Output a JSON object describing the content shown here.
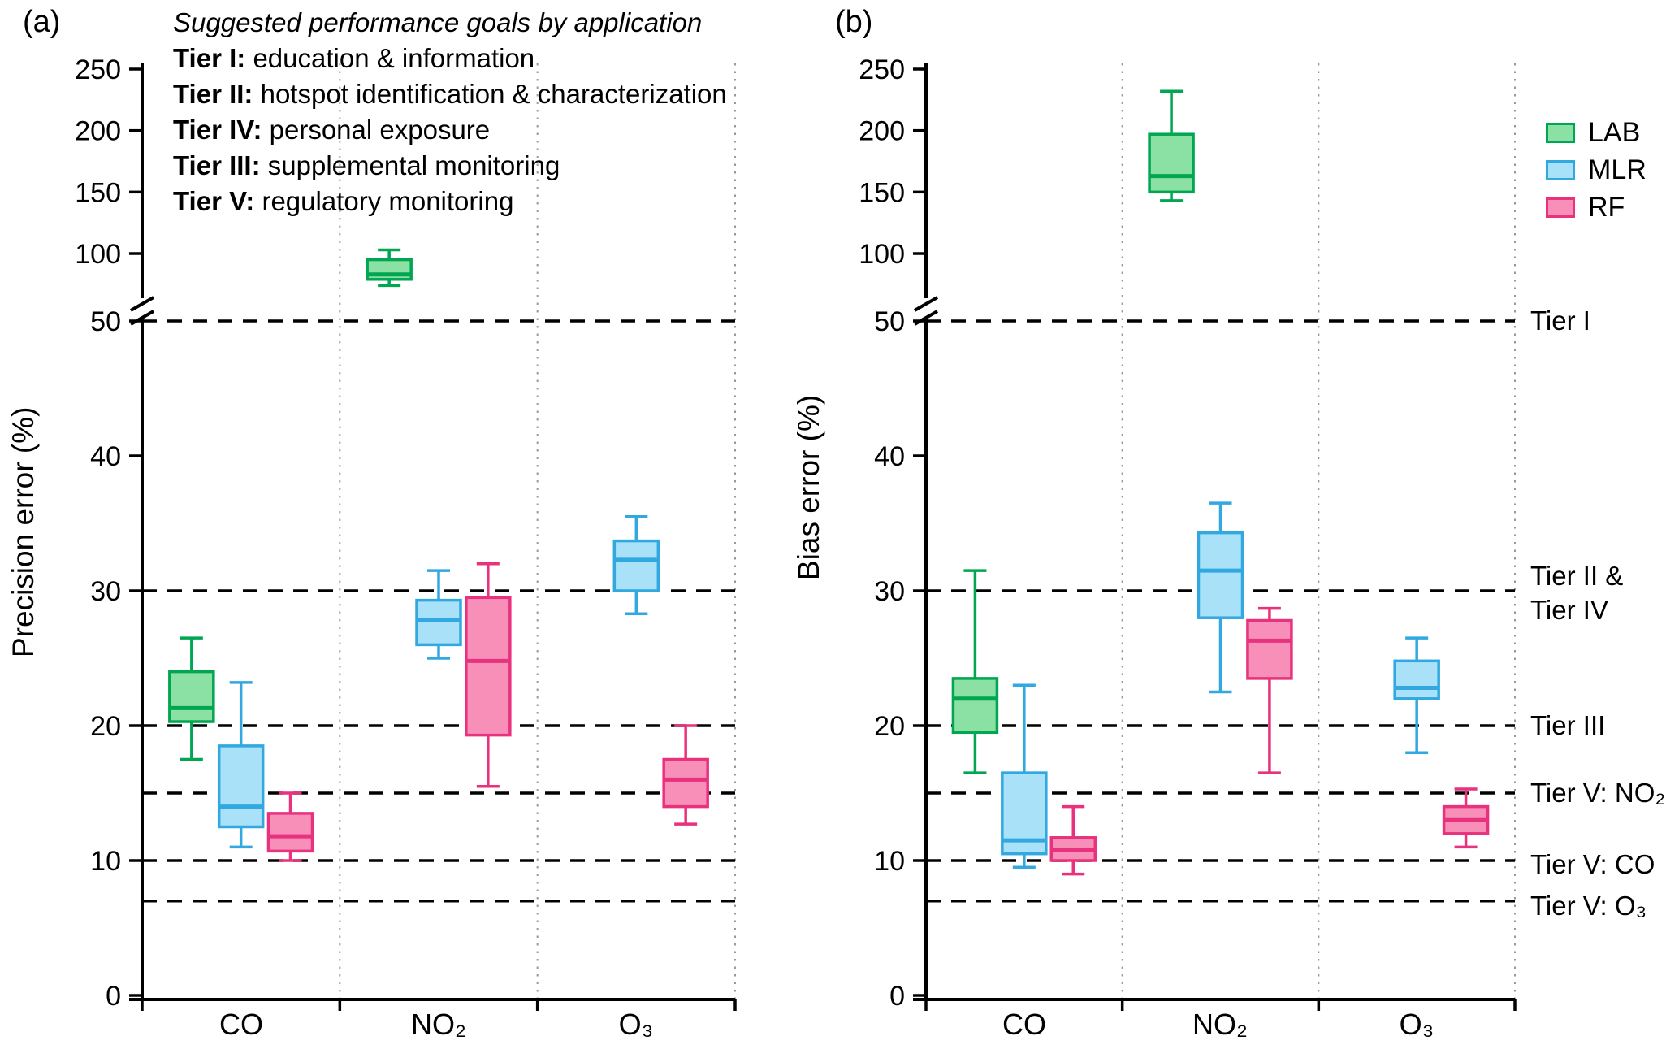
{
  "annotation": {
    "title": "Suggested performance goals by application",
    "items": [
      {
        "bold": "Tier I:",
        "text": "education & information"
      },
      {
        "bold": "Tier II:",
        "text": "hotspot identification & characterization"
      },
      {
        "bold": "Tier IV:",
        "text": "personal exposure"
      },
      {
        "bold": "Tier III:",
        "text": "supplemental monitoring"
      },
      {
        "bold": "Tier V:",
        "text": "regulatory monitoring"
      }
    ]
  },
  "chart_data": {
    "type": "box",
    "categories": [
      "CO",
      "NO₂",
      "O₃"
    ],
    "series": [
      {
        "name": "LAB",
        "fill": "#8BE0A4",
        "stroke": "#00A651"
      },
      {
        "name": "MLR",
        "fill": "#A9E1F8",
        "stroke": "#31A8E0"
      },
      {
        "name": "RF",
        "fill": "#F78FB9",
        "stroke": "#E8327D"
      }
    ],
    "y_axis": {
      "broken": true,
      "lower_range": [
        0,
        50
      ],
      "lower_ticks": [
        0,
        10,
        20,
        30,
        40,
        50
      ],
      "upper_range": [
        100,
        250
      ],
      "upper_ticks": [
        100,
        150,
        200,
        250
      ],
      "break_between": [
        50,
        100
      ]
    },
    "tier_lines": [
      {
        "value": 50,
        "label": "Tier I",
        "lines": [
          "Tier I"
        ]
      },
      {
        "value": 30,
        "label": "Tier II & Tier IV",
        "lines": [
          "Tier II &",
          "Tier IV"
        ]
      },
      {
        "value": 20,
        "label": "Tier III",
        "lines": [
          "Tier III"
        ]
      },
      {
        "value": 15,
        "label": "Tier V: NO₂",
        "lines": [
          "Tier V: NO₂"
        ]
      },
      {
        "value": 10,
        "label": "Tier V: CO",
        "lines": [
          "Tier V: CO"
        ]
      },
      {
        "value": 7,
        "label": "Tier V: O₃",
        "lines": [
          "Tier V: O₃"
        ]
      }
    ],
    "panels": [
      {
        "id": "a",
        "label": "(a)",
        "ylabel": "Precision error (%)",
        "boxes": [
          {
            "category": "CO",
            "series": "LAB",
            "low": 17.5,
            "q1": 20.3,
            "median": 21.3,
            "q3": 24.0,
            "high": 26.5
          },
          {
            "category": "CO",
            "series": "MLR",
            "low": 11.0,
            "q1": 12.5,
            "median": 14.0,
            "q3": 18.5,
            "high": 23.2
          },
          {
            "category": "CO",
            "series": "RF",
            "low": 10.0,
            "q1": 10.7,
            "median": 11.8,
            "q3": 13.5,
            "high": 15.0
          },
          {
            "category": "NO₂",
            "series": "LAB",
            "low": 74,
            "q1": 79,
            "median": 83,
            "q3": 95,
            "high": 103
          },
          {
            "category": "NO₂",
            "series": "MLR",
            "low": 25.0,
            "q1": 26.0,
            "median": 27.8,
            "q3": 29.3,
            "high": 31.5
          },
          {
            "category": "NO₂",
            "series": "RF",
            "low": 15.5,
            "q1": 19.3,
            "median": 24.8,
            "q3": 29.5,
            "high": 32.0
          },
          {
            "category": "O₃",
            "series": "MLR",
            "low": 28.3,
            "q1": 30.0,
            "median": 32.3,
            "q3": 33.7,
            "high": 35.5
          },
          {
            "category": "O₃",
            "series": "RF",
            "low": 12.7,
            "q1": 14.0,
            "median": 16.0,
            "q3": 17.5,
            "high": 20.0
          }
        ]
      },
      {
        "id": "b",
        "label": "(b)",
        "ylabel": "Bias error (%)",
        "boxes": [
          {
            "category": "CO",
            "series": "LAB",
            "low": 16.5,
            "q1": 19.5,
            "median": 22.0,
            "q3": 23.5,
            "high": 31.5
          },
          {
            "category": "CO",
            "series": "MLR",
            "low": 9.5,
            "q1": 10.5,
            "median": 11.5,
            "q3": 16.5,
            "high": 23.0
          },
          {
            "category": "CO",
            "series": "RF",
            "low": 9.0,
            "q1": 10.0,
            "median": 10.8,
            "q3": 11.7,
            "high": 14.0
          },
          {
            "category": "NO₂",
            "series": "LAB",
            "low": 143,
            "q1": 150,
            "median": 163,
            "q3": 197,
            "high": 232
          },
          {
            "category": "NO₂",
            "series": "MLR",
            "low": 22.5,
            "q1": 28.0,
            "median": 31.5,
            "q3": 34.3,
            "high": 36.5
          },
          {
            "category": "NO₂",
            "series": "RF",
            "low": 16.5,
            "q1": 23.5,
            "median": 26.3,
            "q3": 27.8,
            "high": 28.7
          },
          {
            "category": "O₃",
            "series": "MLR",
            "low": 18.0,
            "q1": 22.0,
            "median": 22.8,
            "q3": 24.8,
            "high": 26.5
          },
          {
            "category": "O₃",
            "series": "RF",
            "low": 11.0,
            "q1": 12.0,
            "median": 13.0,
            "q3": 14.0,
            "high": 15.3
          }
        ]
      }
    ]
  }
}
